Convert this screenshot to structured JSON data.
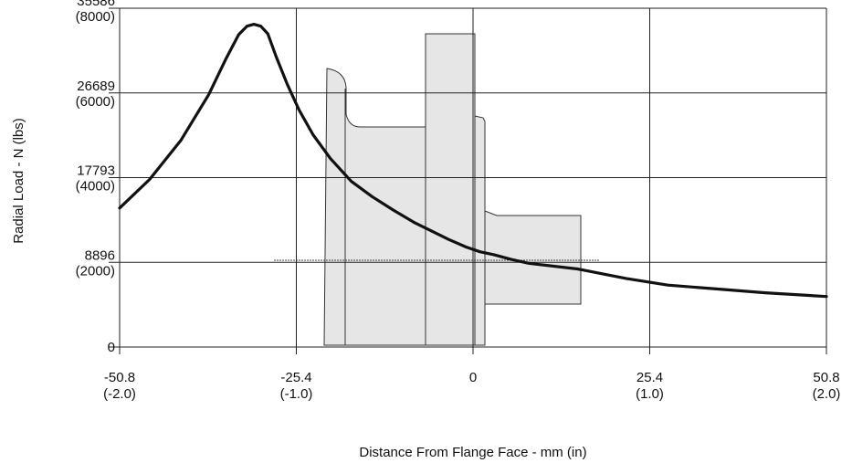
{
  "chart_data": {
    "type": "line",
    "title": "",
    "xlabel": "Distance From Flange Face - mm (in)",
    "ylabel": "Radial Load - N (lbs)",
    "xlim": [
      -50.8,
      50.8
    ],
    "ylim": [
      0,
      35586
    ],
    "grid": true,
    "x_ticks": [
      {
        "value": -50.8,
        "mm": "-50.8",
        "in": "(-2.0)"
      },
      {
        "value": -25.4,
        "mm": "-25.4",
        "in": "(-1.0)"
      },
      {
        "value": 0,
        "mm": "0",
        "in": ""
      },
      {
        "value": 25.4,
        "mm": "25.4",
        "in": "(1.0)"
      },
      {
        "value": 50.8,
        "mm": "50.8",
        "in": "(2.0)"
      }
    ],
    "y_ticks": [
      {
        "value": 0,
        "n": "0",
        "lbs": ""
      },
      {
        "value": 8896,
        "n": "8896",
        "lbs": "(2000)"
      },
      {
        "value": 17793,
        "n": "17793",
        "lbs": "(4000)"
      },
      {
        "value": 26689,
        "n": "26689",
        "lbs": "(6000)"
      },
      {
        "value": 35586,
        "n": "35586",
        "lbs": "(8000)"
      }
    ],
    "series": [
      {
        "name": "",
        "x": [
          -50.8,
          -46.5,
          -42.0,
          -38.0,
          -35.5,
          -33.7,
          -32.5,
          -31.5,
          -30.5,
          -29.5,
          -28.3,
          -26.7,
          -25.0,
          -23.0,
          -20.5,
          -17.5,
          -14.5,
          -11.5,
          -8.5,
          -6.0,
          -3.5,
          -1.0,
          1.0,
          3.0,
          5.5,
          8.0,
          15.0,
          22.0,
          28.0,
          35.0,
          42.0,
          50.8
        ],
        "y": [
          14600,
          17600,
          21700,
          26500,
          30300,
          32800,
          33700,
          33900,
          33700,
          32900,
          30500,
          27600,
          24900,
          22300,
          19800,
          17400,
          15800,
          14400,
          13100,
          12200,
          11300,
          10500,
          10000,
          9700,
          9200,
          8800,
          8200,
          7200,
          6500,
          6100,
          5700,
          5300
        ]
      }
    ]
  }
}
